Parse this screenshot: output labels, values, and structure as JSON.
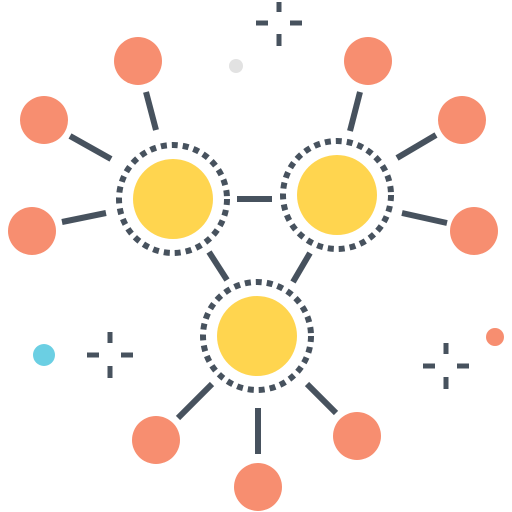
{
  "illustration": {
    "subject": "network-hubs-icon",
    "colors": {
      "hub_fill": "#FFD54F",
      "node_fill": "#F78E70",
      "line": "#47525E",
      "accent_blue": "#6BCFE3",
      "accent_orange": "#F78E70",
      "dot_gray": "#E2E2E2"
    }
  }
}
